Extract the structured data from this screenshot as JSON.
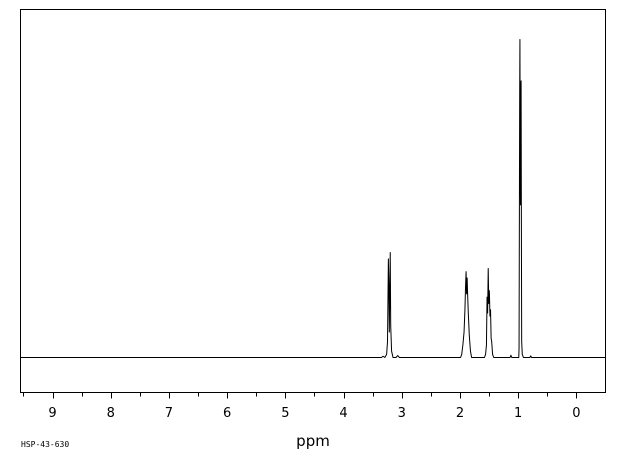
{
  "chart_data": {
    "type": "line",
    "title": "",
    "xlabel": "ppm",
    "ylabel": "",
    "xlim": [
      9.55,
      -0.5
    ],
    "ylim": [
      -0.1,
      1.0
    ],
    "x_direction": "reversed",
    "grid": false,
    "legend": "none",
    "sample_code": "HSP-43-630",
    "ticks": {
      "major": [
        "9",
        "8",
        "7",
        "6",
        "5",
        "4",
        "3",
        "2",
        "1",
        "0"
      ],
      "minor_step": 0.5
    },
    "series": [
      {
        "values": [
          [
            9.55,
            0.0
          ],
          [
            3.35,
            0.0
          ],
          [
            3.32,
            0.004
          ],
          [
            3.29,
            0.0
          ],
          [
            3.26,
            0.01
          ],
          [
            3.245,
            0.05
          ],
          [
            3.23,
            0.31
          ],
          [
            3.222,
            0.23
          ],
          [
            3.214,
            0.08
          ],
          [
            3.206,
            0.21
          ],
          [
            3.198,
            0.33
          ],
          [
            3.19,
            0.1
          ],
          [
            3.175,
            0.02
          ],
          [
            3.15,
            0.0
          ],
          [
            3.1,
            0.0
          ],
          [
            3.07,
            0.006
          ],
          [
            3.04,
            0.0
          ],
          [
            1.99,
            0.0
          ],
          [
            1.97,
            0.01
          ],
          [
            1.95,
            0.04
          ],
          [
            1.93,
            0.08
          ],
          [
            1.915,
            0.15
          ],
          [
            1.905,
            0.22
          ],
          [
            1.895,
            0.27
          ],
          [
            1.887,
            0.2
          ],
          [
            1.877,
            0.25
          ],
          [
            1.867,
            0.19
          ],
          [
            1.857,
            0.14
          ],
          [
            1.84,
            0.07
          ],
          [
            1.82,
            0.02
          ],
          [
            1.8,
            0.0
          ],
          [
            1.58,
            0.0
          ],
          [
            1.56,
            0.01
          ],
          [
            1.545,
            0.04
          ],
          [
            1.535,
            0.19
          ],
          [
            1.525,
            0.14
          ],
          [
            1.515,
            0.28
          ],
          [
            1.505,
            0.17
          ],
          [
            1.495,
            0.21
          ],
          [
            1.485,
            0.13
          ],
          [
            1.475,
            0.15
          ],
          [
            1.465,
            0.06
          ],
          [
            1.455,
            0.05
          ],
          [
            1.44,
            0.01
          ],
          [
            1.42,
            0.0
          ],
          [
            1.14,
            0.0
          ],
          [
            1.125,
            0.007
          ],
          [
            1.11,
            0.0
          ],
          [
            0.99,
            0.0
          ],
          [
            0.985,
            0.03
          ],
          [
            0.978,
            0.56
          ],
          [
            0.974,
            0.84
          ],
          [
            0.97,
            1.0
          ],
          [
            0.965,
            0.62
          ],
          [
            0.96,
            0.48
          ],
          [
            0.955,
            0.83
          ],
          [
            0.95,
            0.87
          ],
          [
            0.945,
            0.42
          ],
          [
            0.94,
            0.05
          ],
          [
            0.93,
            0.01
          ],
          [
            0.91,
            0.0
          ],
          [
            0.8,
            0.0
          ],
          [
            0.785,
            0.005
          ],
          [
            0.77,
            0.0
          ],
          [
            -0.5,
            0.0
          ]
        ]
      }
    ]
  }
}
